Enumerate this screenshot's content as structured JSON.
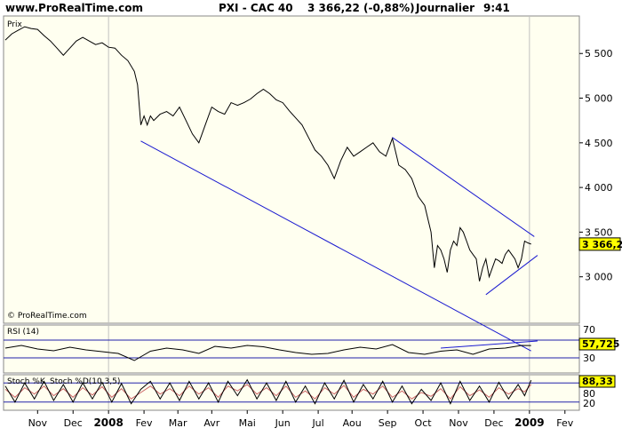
{
  "header": {
    "site": "www.ProRealTime.com",
    "instrument": "PXI - CAC 40",
    "quote": "3 366,22 (-0,88%)",
    "period": "Journalier",
    "time": "9:41"
  },
  "price_panel": {
    "label": "Prix",
    "copyright": "© ProRealTime.com",
    "last_label": "3 366,22"
  },
  "rsi_panel": {
    "label": "RSI (14)",
    "last_label": "57,725",
    "level_70": "70",
    "level_30": "30"
  },
  "stoch_panel": {
    "label": "Stoch %K",
    "label2": "Stoch %D(10,3,5)",
    "last_label": "88,33",
    "level_80": "80",
    "level_20": "20"
  },
  "colors": {
    "plot_bg": "#fffff0",
    "trendline": "#1a1ad0",
    "last_box": "#ffff00",
    "stoch_d": "#cc6666",
    "grid": "#c0c0c0"
  },
  "chart_data": {
    "type": "line",
    "x_tick_labels": [
      "Nov",
      "Dec",
      "2008",
      "Fev",
      "Mar",
      "Avr",
      "Mai",
      "Jun",
      "Jul",
      "Aou",
      "Sep",
      "Oct",
      "Nov",
      "Dec",
      "2009",
      "Fev"
    ],
    "y_tick_labels": [
      "3 000",
      "3 500",
      "4 000",
      "4 500",
      "5 000",
      "5 500"
    ],
    "y_ticks": [
      3000,
      3500,
      4000,
      4500,
      5000,
      5500
    ],
    "ylim": [
      2500,
      5900
    ],
    "xlim": [
      0,
      330
    ],
    "x_tick_positions": [
      20,
      42,
      64,
      86,
      107,
      128,
      150,
      172,
      194,
      215,
      237,
      259,
      281,
      303,
      325,
      347
    ],
    "price": [
      [
        0,
        5650
      ],
      [
        4,
        5720
      ],
      [
        8,
        5760
      ],
      [
        12,
        5800
      ],
      [
        16,
        5780
      ],
      [
        20,
        5770
      ],
      [
        24,
        5700
      ],
      [
        28,
        5640
      ],
      [
        32,
        5560
      ],
      [
        36,
        5480
      ],
      [
        40,
        5560
      ],
      [
        44,
        5640
      ],
      [
        48,
        5680
      ],
      [
        52,
        5640
      ],
      [
        56,
        5600
      ],
      [
        60,
        5620
      ],
      [
        64,
        5570
      ],
      [
        68,
        5560
      ],
      [
        72,
        5480
      ],
      [
        76,
        5420
      ],
      [
        80,
        5300
      ],
      [
        82,
        5150
      ],
      [
        84,
        4700
      ],
      [
        86,
        4800
      ],
      [
        88,
        4700
      ],
      [
        90,
        4800
      ],
      [
        92,
        4750
      ],
      [
        96,
        4820
      ],
      [
        100,
        4850
      ],
      [
        104,
        4800
      ],
      [
        108,
        4900
      ],
      [
        112,
        4750
      ],
      [
        116,
        4600
      ],
      [
        120,
        4500
      ],
      [
        124,
        4700
      ],
      [
        128,
        4900
      ],
      [
        132,
        4850
      ],
      [
        136,
        4820
      ],
      [
        140,
        4950
      ],
      [
        144,
        4920
      ],
      [
        148,
        4950
      ],
      [
        152,
        4990
      ],
      [
        156,
        5050
      ],
      [
        160,
        5100
      ],
      [
        164,
        5050
      ],
      [
        168,
        4980
      ],
      [
        172,
        4950
      ],
      [
        176,
        4860
      ],
      [
        180,
        4780
      ],
      [
        184,
        4700
      ],
      [
        188,
        4560
      ],
      [
        192,
        4420
      ],
      [
        196,
        4350
      ],
      [
        200,
        4250
      ],
      [
        204,
        4100
      ],
      [
        208,
        4300
      ],
      [
        212,
        4450
      ],
      [
        216,
        4350
      ],
      [
        220,
        4400
      ],
      [
        224,
        4450
      ],
      [
        228,
        4500
      ],
      [
        232,
        4400
      ],
      [
        236,
        4350
      ],
      [
        240,
        4550
      ],
      [
        244,
        4250
      ],
      [
        248,
        4200
      ],
      [
        252,
        4100
      ],
      [
        256,
        3900
      ],
      [
        260,
        3800
      ],
      [
        264,
        3500
      ],
      [
        266,
        3100
      ],
      [
        268,
        3350
      ],
      [
        270,
        3300
      ],
      [
        272,
        3200
      ],
      [
        274,
        3050
      ],
      [
        276,
        3300
      ],
      [
        278,
        3400
      ],
      [
        280,
        3350
      ],
      [
        282,
        3550
      ],
      [
        284,
        3500
      ],
      [
        286,
        3400
      ],
      [
        288,
        3300
      ],
      [
        290,
        3250
      ],
      [
        292,
        3200
      ],
      [
        294,
        2950
      ],
      [
        296,
        3100
      ],
      [
        298,
        3200
      ],
      [
        300,
        3000
      ],
      [
        302,
        3100
      ],
      [
        304,
        3200
      ],
      [
        306,
        3180
      ],
      [
        308,
        3150
      ],
      [
        310,
        3250
      ],
      [
        312,
        3300
      ],
      [
        314,
        3250
      ],
      [
        316,
        3200
      ],
      [
        318,
        3100
      ],
      [
        320,
        3200
      ],
      [
        322,
        3400
      ],
      [
        324,
        3380
      ],
      [
        326,
        3366
      ]
    ],
    "trendlines": [
      [
        [
          84,
          4520
        ],
        [
          326,
          2170
        ]
      ],
      [
        [
          240,
          4560
        ],
        [
          328,
          3450
        ]
      ],
      [
        [
          298,
          2800
        ],
        [
          330,
          3240
        ]
      ]
    ],
    "rsi": [
      [
        0,
        52
      ],
      [
        10,
        58
      ],
      [
        20,
        50
      ],
      [
        30,
        46
      ],
      [
        40,
        54
      ],
      [
        50,
        48
      ],
      [
        60,
        44
      ],
      [
        70,
        40
      ],
      [
        80,
        24
      ],
      [
        90,
        45
      ],
      [
        100,
        52
      ],
      [
        110,
        48
      ],
      [
        120,
        40
      ],
      [
        130,
        56
      ],
      [
        140,
        52
      ],
      [
        150,
        58
      ],
      [
        160,
        55
      ],
      [
        170,
        48
      ],
      [
        180,
        42
      ],
      [
        190,
        38
      ],
      [
        200,
        40
      ],
      [
        210,
        48
      ],
      [
        220,
        54
      ],
      [
        230,
        50
      ],
      [
        240,
        60
      ],
      [
        250,
        42
      ],
      [
        260,
        38
      ],
      [
        270,
        45
      ],
      [
        280,
        48
      ],
      [
        290,
        38
      ],
      [
        300,
        50
      ],
      [
        310,
        52
      ],
      [
        320,
        58
      ],
      [
        326,
        57.7
      ]
    ],
    "rsi_trend": [
      [
        270,
        52
      ],
      [
        330,
        68
      ]
    ],
    "stoch_k": [
      [
        0,
        70
      ],
      [
        6,
        20
      ],
      [
        12,
        80
      ],
      [
        18,
        30
      ],
      [
        24,
        85
      ],
      [
        30,
        25
      ],
      [
        36,
        75
      ],
      [
        42,
        20
      ],
      [
        48,
        80
      ],
      [
        54,
        30
      ],
      [
        60,
        82
      ],
      [
        66,
        20
      ],
      [
        72,
        78
      ],
      [
        78,
        15
      ],
      [
        84,
        60
      ],
      [
        90,
        85
      ],
      [
        96,
        30
      ],
      [
        102,
        80
      ],
      [
        108,
        25
      ],
      [
        114,
        85
      ],
      [
        120,
        30
      ],
      [
        126,
        80
      ],
      [
        132,
        20
      ],
      [
        138,
        85
      ],
      [
        144,
        40
      ],
      [
        150,
        90
      ],
      [
        156,
        30
      ],
      [
        162,
        80
      ],
      [
        168,
        25
      ],
      [
        174,
        85
      ],
      [
        180,
        20
      ],
      [
        186,
        70
      ],
      [
        192,
        15
      ],
      [
        198,
        80
      ],
      [
        204,
        30
      ],
      [
        210,
        88
      ],
      [
        216,
        20
      ],
      [
        222,
        75
      ],
      [
        228,
        30
      ],
      [
        234,
        85
      ],
      [
        240,
        20
      ],
      [
        246,
        70
      ],
      [
        252,
        15
      ],
      [
        258,
        60
      ],
      [
        264,
        25
      ],
      [
        270,
        80
      ],
      [
        276,
        15
      ],
      [
        282,
        85
      ],
      [
        288,
        25
      ],
      [
        294,
        70
      ],
      [
        300,
        20
      ],
      [
        306,
        82
      ],
      [
        312,
        30
      ],
      [
        318,
        75
      ],
      [
        322,
        40
      ],
      [
        326,
        88.33
      ]
    ],
    "stoch_d": [
      [
        0,
        60
      ],
      [
        6,
        35
      ],
      [
        12,
        65
      ],
      [
        18,
        45
      ],
      [
        24,
        70
      ],
      [
        30,
        40
      ],
      [
        36,
        62
      ],
      [
        42,
        35
      ],
      [
        48,
        65
      ],
      [
        54,
        42
      ],
      [
        60,
        68
      ],
      [
        66,
        35
      ],
      [
        72,
        62
      ],
      [
        78,
        30
      ],
      [
        84,
        50
      ],
      [
        90,
        70
      ],
      [
        96,
        45
      ],
      [
        102,
        62
      ],
      [
        108,
        40
      ],
      [
        114,
        70
      ],
      [
        120,
        45
      ],
      [
        126,
        65
      ],
      [
        132,
        35
      ],
      [
        138,
        70
      ],
      [
        144,
        55
      ],
      [
        150,
        75
      ],
      [
        156,
        45
      ],
      [
        162,
        65
      ],
      [
        168,
        40
      ],
      [
        174,
        70
      ],
      [
        180,
        35
      ],
      [
        186,
        55
      ],
      [
        192,
        30
      ],
      [
        198,
        65
      ],
      [
        204,
        45
      ],
      [
        210,
        72
      ],
      [
        216,
        35
      ],
      [
        222,
        60
      ],
      [
        228,
        45
      ],
      [
        234,
        70
      ],
      [
        240,
        35
      ],
      [
        246,
        55
      ],
      [
        252,
        30
      ],
      [
        258,
        50
      ],
      [
        264,
        38
      ],
      [
        270,
        62
      ],
      [
        276,
        30
      ],
      [
        282,
        68
      ],
      [
        288,
        40
      ],
      [
        294,
        58
      ],
      [
        300,
        35
      ],
      [
        306,
        65
      ],
      [
        312,
        45
      ],
      [
        318,
        62
      ],
      [
        322,
        52
      ],
      [
        326,
        75
      ]
    ]
  }
}
